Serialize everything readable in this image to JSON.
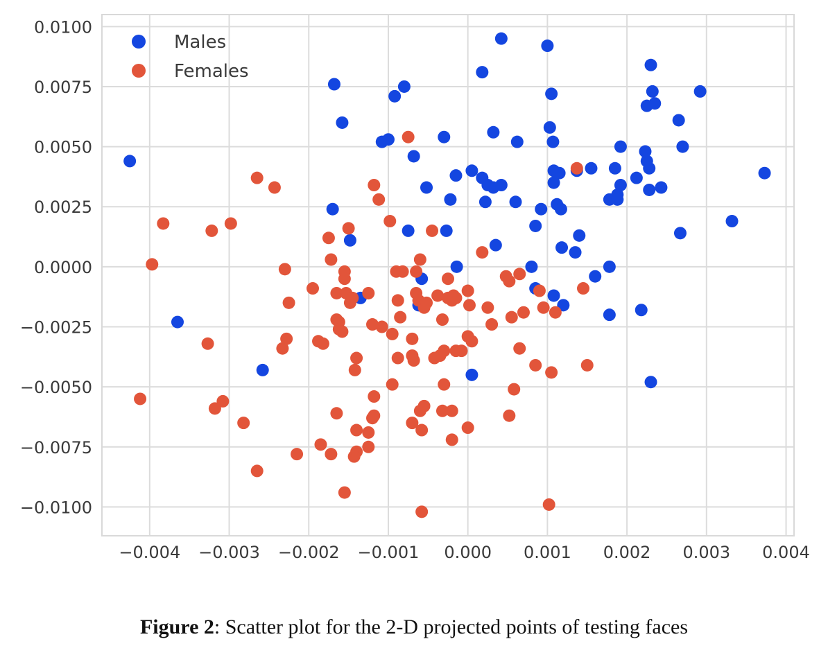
{
  "caption": {
    "label": "Figure 2",
    "text": ": Scatter plot for the 2-D projected points of testing faces"
  },
  "chart_data": {
    "type": "scatter",
    "xlim": [
      -0.0046,
      0.0041
    ],
    "ylim": [
      -0.0112,
      0.0105
    ],
    "x_ticks": [
      -0.004,
      -0.003,
      -0.002,
      -0.001,
      0.0,
      0.001,
      0.002,
      0.003,
      0.004
    ],
    "x_tick_labels": [
      "−0.004",
      "−0.003",
      "−0.002",
      "−0.001",
      "0.000",
      "0.001",
      "0.002",
      "0.003",
      "0.004"
    ],
    "y_ticks": [
      0.01,
      0.0075,
      0.005,
      0.0025,
      0.0,
      -0.0025,
      -0.005,
      -0.0075,
      -0.01
    ],
    "y_tick_labels": [
      "0.0100",
      "0.0075",
      "0.0050",
      "0.0025",
      "0.0000",
      "−0.0025",
      "−0.0050",
      "−0.0075",
      "−0.0100"
    ],
    "grid": true,
    "legend_position": "top-left",
    "series": [
      {
        "name": "Males",
        "color": "#1446E0",
        "points": [
          [
            -0.00425,
            0.0044
          ],
          [
            -0.00365,
            -0.0023
          ],
          [
            -0.00258,
            -0.0043
          ],
          [
            -0.00168,
            0.0076
          ],
          [
            -0.00158,
            0.006
          ],
          [
            -0.0017,
            0.0024
          ],
          [
            -0.00148,
            0.0011
          ],
          [
            -0.00135,
            -0.0013
          ],
          [
            -0.00092,
            0.0071
          ],
          [
            -0.0008,
            0.0075
          ],
          [
            -0.00108,
            0.0052
          ],
          [
            -0.001,
            0.0053
          ],
          [
            -0.00068,
            0.0046
          ],
          [
            -0.00052,
            0.0033
          ],
          [
            -0.00075,
            0.0015
          ],
          [
            -0.00058,
            -0.0005
          ],
          [
            -0.00062,
            -0.0016
          ],
          [
            -0.0003,
            0.0054
          ],
          [
            -0.00015,
            0.0038
          ],
          [
            -0.00022,
            0.0028
          ],
          [
            -0.00027,
            0.0015
          ],
          [
            -0.00014,
            0.0
          ],
          [
            0.00018,
            0.0081
          ],
          [
            0.00042,
            0.0095
          ],
          [
            0.00032,
            0.0056
          ],
          [
            5e-05,
            0.004
          ],
          [
            0.00018,
            0.0037
          ],
          [
            0.00025,
            0.0034
          ],
          [
            0.00032,
            0.0033
          ],
          [
            0.00042,
            0.0034
          ],
          [
            0.00022,
            0.0027
          ],
          [
            0.00035,
            0.0009
          ],
          [
            5e-05,
            -0.0045
          ],
          [
            0.00062,
            0.0052
          ],
          [
            0.0006,
            0.0027
          ],
          [
            0.001,
            0.0092
          ],
          [
            0.00105,
            0.0072
          ],
          [
            0.00103,
            0.0058
          ],
          [
            0.00107,
            0.0052
          ],
          [
            0.00108,
            0.004
          ],
          [
            0.00115,
            0.0039
          ],
          [
            0.00108,
            0.0035
          ],
          [
            0.00112,
            0.0026
          ],
          [
            0.00117,
            0.0024
          ],
          [
            0.00092,
            0.0024
          ],
          [
            0.00085,
            0.0017
          ],
          [
            0.00118,
            0.0008
          ],
          [
            0.0008,
            0.0
          ],
          [
            0.00085,
            -0.0009
          ],
          [
            0.00108,
            -0.0012
          ],
          [
            0.0012,
            -0.0016
          ],
          [
            0.0014,
            0.0013
          ],
          [
            0.00135,
            0.0006
          ],
          [
            0.00137,
            0.004
          ],
          [
            0.00155,
            0.0041
          ],
          [
            0.0016,
            -0.0004
          ],
          [
            0.00192,
            0.005
          ],
          [
            0.00185,
            0.0041
          ],
          [
            0.00192,
            0.0034
          ],
          [
            0.00178,
            0.0028
          ],
          [
            0.00188,
            0.003
          ],
          [
            0.00188,
            0.0028
          ],
          [
            0.00178,
            0.0
          ],
          [
            0.00178,
            -0.002
          ],
          [
            0.00218,
            -0.0018
          ],
          [
            0.0023,
            0.0084
          ],
          [
            0.00232,
            0.0073
          ],
          [
            0.00235,
            0.0068
          ],
          [
            0.00225,
            0.0067
          ],
          [
            0.00223,
            0.0048
          ],
          [
            0.00225,
            0.0044
          ],
          [
            0.00228,
            0.0041
          ],
          [
            0.00212,
            0.0037
          ],
          [
            0.00228,
            0.0032
          ],
          [
            0.00243,
            0.0033
          ],
          [
            0.00265,
            0.0061
          ],
          [
            0.0027,
            0.005
          ],
          [
            0.00267,
            0.0014
          ],
          [
            0.0023,
            -0.0048
          ],
          [
            0.00292,
            0.0073
          ],
          [
            0.00332,
            0.0019
          ],
          [
            0.00373,
            0.0039
          ]
        ]
      },
      {
        "name": "Females",
        "color": "#E2553A",
        "points": [
          [
            -0.00412,
            -0.0055
          ],
          [
            -0.00397,
            0.0001
          ],
          [
            -0.00383,
            0.0018
          ],
          [
            -0.00327,
            -0.0032
          ],
          [
            -0.00322,
            0.0015
          ],
          [
            -0.00318,
            -0.0059
          ],
          [
            -0.00308,
            -0.0056
          ],
          [
            -0.00298,
            0.0018
          ],
          [
            -0.00282,
            -0.0065
          ],
          [
            -0.00265,
            0.0037
          ],
          [
            -0.00265,
            -0.0085
          ],
          [
            -0.00243,
            0.0033
          ],
          [
            -0.00233,
            -0.0034
          ],
          [
            -0.0023,
            -0.0001
          ],
          [
            -0.00228,
            -0.003
          ],
          [
            -0.00225,
            -0.0015
          ],
          [
            -0.00215,
            -0.0078
          ],
          [
            -0.00195,
            -0.0009
          ],
          [
            -0.00188,
            -0.0031
          ],
          [
            -0.00182,
            -0.0032
          ],
          [
            -0.00185,
            -0.0074
          ],
          [
            -0.00175,
            0.0012
          ],
          [
            -0.00172,
            0.0003
          ],
          [
            -0.00172,
            -0.0078
          ],
          [
            -0.00165,
            -0.0011
          ],
          [
            -0.00165,
            -0.0022
          ],
          [
            -0.00162,
            -0.0023
          ],
          [
            -0.00162,
            -0.0026
          ],
          [
            -0.00158,
            -0.0027
          ],
          [
            -0.00165,
            -0.0061
          ],
          [
            -0.00155,
            -0.0094
          ],
          [
            -0.00155,
            -0.0002
          ],
          [
            -0.00155,
            -0.0005
          ],
          [
            -0.00153,
            -0.0011
          ],
          [
            -0.0015,
            0.0016
          ],
          [
            -0.00148,
            -0.0015
          ],
          [
            -0.00145,
            -0.0013
          ],
          [
            -0.00142,
            -0.0043
          ],
          [
            -0.0014,
            -0.0038
          ],
          [
            -0.0014,
            -0.0068
          ],
          [
            -0.0014,
            -0.0077
          ],
          [
            -0.00143,
            -0.0079
          ],
          [
            -0.00125,
            -0.0011
          ],
          [
            -0.0012,
            -0.0024
          ],
          [
            -0.00118,
            -0.0054
          ],
          [
            -0.0012,
            -0.0063
          ],
          [
            -0.00118,
            -0.0062
          ],
          [
            -0.00125,
            -0.0069
          ],
          [
            -0.00125,
            -0.0075
          ],
          [
            -0.00118,
            0.0034
          ],
          [
            -0.00112,
            0.0028
          ],
          [
            -0.00108,
            -0.0025
          ],
          [
            -0.00098,
            0.0019
          ],
          [
            -0.00095,
            -0.0028
          ],
          [
            -0.00095,
            -0.0049
          ],
          [
            -0.0009,
            -0.0002
          ],
          [
            -0.00088,
            -0.0014
          ],
          [
            -0.00085,
            -0.0021
          ],
          [
            -0.00088,
            -0.0038
          ],
          [
            -0.00082,
            -0.0002
          ],
          [
            -0.00075,
            0.0054
          ],
          [
            -0.0007,
            -0.003
          ],
          [
            -0.0007,
            -0.0037
          ],
          [
            -0.00068,
            -0.0039
          ],
          [
            -0.0007,
            -0.0065
          ],
          [
            -0.00065,
            -0.0002
          ],
          [
            -0.00065,
            -0.0011
          ],
          [
            -0.00062,
            -0.0014
          ],
          [
            -0.0006,
            0.0003
          ],
          [
            -0.0006,
            -0.006
          ],
          [
            -0.00058,
            -0.0068
          ],
          [
            -0.00058,
            -0.0102
          ],
          [
            -0.00055,
            -0.0058
          ],
          [
            -0.00055,
            -0.0017
          ],
          [
            -0.00052,
            -0.0015
          ],
          [
            -0.00045,
            0.0015
          ],
          [
            -0.00042,
            -0.0038
          ],
          [
            -0.00038,
            -0.0012
          ],
          [
            -0.00035,
            -0.0037
          ],
          [
            -0.00032,
            -0.0022
          ],
          [
            -0.0003,
            -0.0035
          ],
          [
            -0.00032,
            -0.006
          ],
          [
            -0.0003,
            -0.0049
          ],
          [
            -0.00025,
            -0.0005
          ],
          [
            -0.00025,
            -0.0013
          ],
          [
            -0.0002,
            -0.0014
          ],
          [
            -0.00018,
            -0.0012
          ],
          [
            -0.0002,
            -0.006
          ],
          [
            -0.0002,
            -0.0072
          ],
          [
            -0.00015,
            -0.0013
          ],
          [
            -0.00015,
            -0.0035
          ],
          [
            -8e-05,
            -0.0035
          ],
          [
            0.0,
            -0.001
          ],
          [
            2e-05,
            -0.0016
          ],
          [
            0.0,
            -0.0029
          ],
          [
            5e-05,
            -0.0031
          ],
          [
            0.0,
            -0.0067
          ],
          [
            0.00018,
            0.0006
          ],
          [
            0.00025,
            -0.0017
          ],
          [
            0.0003,
            -0.0024
          ],
          [
            0.00048,
            -0.0004
          ],
          [
            0.00052,
            -0.0006
          ],
          [
            0.00055,
            -0.0021
          ],
          [
            0.00052,
            -0.0062
          ],
          [
            0.00065,
            -0.0003
          ],
          [
            0.00058,
            -0.0051
          ],
          [
            0.00065,
            -0.0034
          ],
          [
            0.0007,
            -0.0019
          ],
          [
            0.00085,
            -0.0041
          ],
          [
            0.0009,
            -0.001
          ],
          [
            0.00095,
            -0.0017
          ],
          [
            0.00105,
            -0.0044
          ],
          [
            0.00102,
            -0.0099
          ],
          [
            0.0011,
            -0.0019
          ],
          [
            0.00137,
            0.0041
          ],
          [
            0.00145,
            -0.0009
          ],
          [
            0.0015,
            -0.0041
          ]
        ]
      }
    ]
  }
}
